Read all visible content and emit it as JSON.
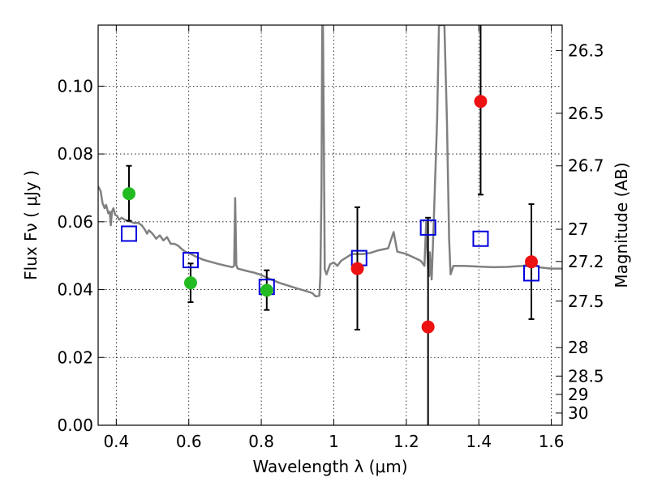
{
  "chart_data": {
    "type": "scatter",
    "title": "",
    "xlabel": "Wavelength  λ (μm)",
    "ylabel": "Flux  Fν  ( μJy )",
    "y2label": "Magnitude (AB)",
    "xlim": [
      0.35,
      1.63
    ],
    "ylim": [
      0.0,
      0.118
    ],
    "grid": true,
    "x_ticks": [
      0.4,
      0.6,
      0.8,
      1.0,
      1.2,
      1.4,
      1.6
    ],
    "x_tick_labels": [
      "0.4",
      "0.6",
      "0.8",
      "1",
      "1.2",
      "1.4",
      "1.6"
    ],
    "y_ticks": [
      0.0,
      0.02,
      0.04,
      0.06,
      0.08,
      0.1
    ],
    "y_tick_labels": [
      "0.00",
      "0.02",
      "0.04",
      "0.06",
      "0.08",
      "0.10"
    ],
    "y2_ticks": [
      {
        "label": "26.3",
        "flux": 0.1105
      },
      {
        "label": "26.5",
        "flux": 0.092
      },
      {
        "label": "26.7",
        "flux": 0.0765
      },
      {
        "label": "27",
        "flux": 0.0578
      },
      {
        "label": "27.2",
        "flux": 0.0483
      },
      {
        "label": "27.5",
        "flux": 0.0366
      },
      {
        "label": "28",
        "flux": 0.0229
      },
      {
        "label": "28.5",
        "flux": 0.0145
      },
      {
        "label": "29",
        "flux": 0.0091
      },
      {
        "label": "30",
        "flux": 0.0036
      }
    ],
    "series": [
      {
        "name": "model spectrum",
        "kind": "line",
        "color": "#808080",
        "points": [
          [
            0.35,
            0.0705
          ],
          [
            0.357,
            0.069
          ],
          [
            0.362,
            0.0655
          ],
          [
            0.368,
            0.064
          ],
          [
            0.372,
            0.065
          ],
          [
            0.378,
            0.0625
          ],
          [
            0.382,
            0.063
          ],
          [
            0.385,
            0.059
          ],
          [
            0.388,
            0.063
          ],
          [
            0.392,
            0.064
          ],
          [
            0.397,
            0.062
          ],
          [
            0.402,
            0.0618
          ],
          [
            0.408,
            0.0606
          ],
          [
            0.415,
            0.0612
          ],
          [
            0.425,
            0.0605
          ],
          [
            0.44,
            0.06
          ],
          [
            0.45,
            0.0596
          ],
          [
            0.46,
            0.0597
          ],
          [
            0.47,
            0.059
          ],
          [
            0.48,
            0.0575
          ],
          [
            0.485,
            0.0565
          ],
          [
            0.49,
            0.0575
          ],
          [
            0.5,
            0.0565
          ],
          [
            0.51,
            0.055
          ],
          [
            0.52,
            0.056
          ],
          [
            0.53,
            0.0545
          ],
          [
            0.54,
            0.0555
          ],
          [
            0.55,
            0.0535
          ],
          [
            0.56,
            0.0535
          ],
          [
            0.57,
            0.053
          ],
          [
            0.58,
            0.052
          ],
          [
            0.59,
            0.0512
          ],
          [
            0.6,
            0.0508
          ],
          [
            0.62,
            0.0497
          ],
          [
            0.64,
            0.0488
          ],
          [
            0.66,
            0.0482
          ],
          [
            0.68,
            0.0476
          ],
          [
            0.7,
            0.0471
          ],
          [
            0.72,
            0.0466
          ],
          [
            0.725,
            0.047
          ],
          [
            0.728,
            0.067
          ],
          [
            0.731,
            0.0472
          ],
          [
            0.735,
            0.0462
          ],
          [
            0.76,
            0.0455
          ],
          [
            0.78,
            0.045
          ],
          [
            0.8,
            0.0443
          ],
          [
            0.82,
            0.0433
          ],
          [
            0.85,
            0.042
          ],
          [
            0.88,
            0.041
          ],
          [
            0.9,
            0.0403
          ],
          [
            0.92,
            0.0397
          ],
          [
            0.94,
            0.039
          ],
          [
            0.95,
            0.038
          ],
          [
            0.96,
            0.0382
          ],
          [
            0.963,
            0.044
          ],
          [
            0.966,
            0.07
          ],
          [
            0.968,
            0.118
          ],
          [
            0.97,
            0.118
          ],
          [
            0.972,
            0.09
          ],
          [
            0.975,
            0.046
          ],
          [
            0.98,
            0.0445
          ],
          [
            0.99,
            0.0475
          ],
          [
            1.0,
            0.048
          ],
          [
            1.01,
            0.047
          ],
          [
            1.02,
            0.0485
          ],
          [
            1.05,
            0.0505
          ],
          [
            1.08,
            0.0505
          ],
          [
            1.1,
            0.0508
          ],
          [
            1.12,
            0.0515
          ],
          [
            1.15,
            0.0522
          ],
          [
            1.165,
            0.057
          ],
          [
            1.175,
            0.0512
          ],
          [
            1.2,
            0.0505
          ],
          [
            1.22,
            0.0495
          ],
          [
            1.24,
            0.0485
          ],
          [
            1.25,
            0.047
          ],
          [
            1.255,
            0.06
          ],
          [
            1.26,
            0.046
          ],
          [
            1.263,
            0.044
          ],
          [
            1.265,
            0.051
          ],
          [
            1.27,
            0.043
          ],
          [
            1.275,
            0.058
          ],
          [
            1.285,
            0.09
          ],
          [
            1.29,
            0.118
          ],
          [
            1.305,
            0.118
          ],
          [
            1.312,
            0.09
          ],
          [
            1.318,
            0.055
          ],
          [
            1.322,
            0.0445
          ],
          [
            1.33,
            0.047
          ],
          [
            1.36,
            0.047
          ],
          [
            1.4,
            0.0468
          ],
          [
            1.44,
            0.0466
          ],
          [
            1.48,
            0.0467
          ],
          [
            1.52,
            0.047
          ],
          [
            1.55,
            0.0475
          ],
          [
            1.57,
            0.0465
          ],
          [
            1.6,
            0.0462
          ],
          [
            1.63,
            0.0462
          ]
        ]
      },
      {
        "name": "observed (green)",
        "kind": "points",
        "color": "#22bb22",
        "points": [
          {
            "x": 0.435,
            "y": 0.0683,
            "err_lo": 0.0603,
            "err_hi": 0.0765
          },
          {
            "x": 0.605,
            "y": 0.042,
            "err_lo": 0.0363,
            "err_hi": 0.0477
          },
          {
            "x": 0.815,
            "y": 0.0398,
            "err_lo": 0.034,
            "err_hi": 0.0457
          }
        ]
      },
      {
        "name": "observed (red)",
        "kind": "points",
        "color": "#ee1111",
        "points": [
          {
            "x": 1.065,
            "y": 0.0462,
            "err_lo": 0.0282,
            "err_hi": 0.0643
          },
          {
            "x": 1.26,
            "y": 0.029,
            "err_lo": 0.0,
            "err_hi": 0.0612
          },
          {
            "x": 1.405,
            "y": 0.0955,
            "err_lo": 0.068,
            "err_hi": 0.118
          },
          {
            "x": 1.545,
            "y": 0.0482,
            "err_lo": 0.0313,
            "err_hi": 0.0652
          }
        ]
      },
      {
        "name": "model photometry",
        "kind": "squares",
        "color": "#0000dd",
        "points": [
          {
            "x": 0.435,
            "y": 0.0565
          },
          {
            "x": 0.605,
            "y": 0.0487
          },
          {
            "x": 0.815,
            "y": 0.0408
          },
          {
            "x": 1.07,
            "y": 0.0493
          },
          {
            "x": 1.26,
            "y": 0.0583
          },
          {
            "x": 1.405,
            "y": 0.055
          },
          {
            "x": 1.545,
            "y": 0.0448
          }
        ]
      }
    ]
  }
}
